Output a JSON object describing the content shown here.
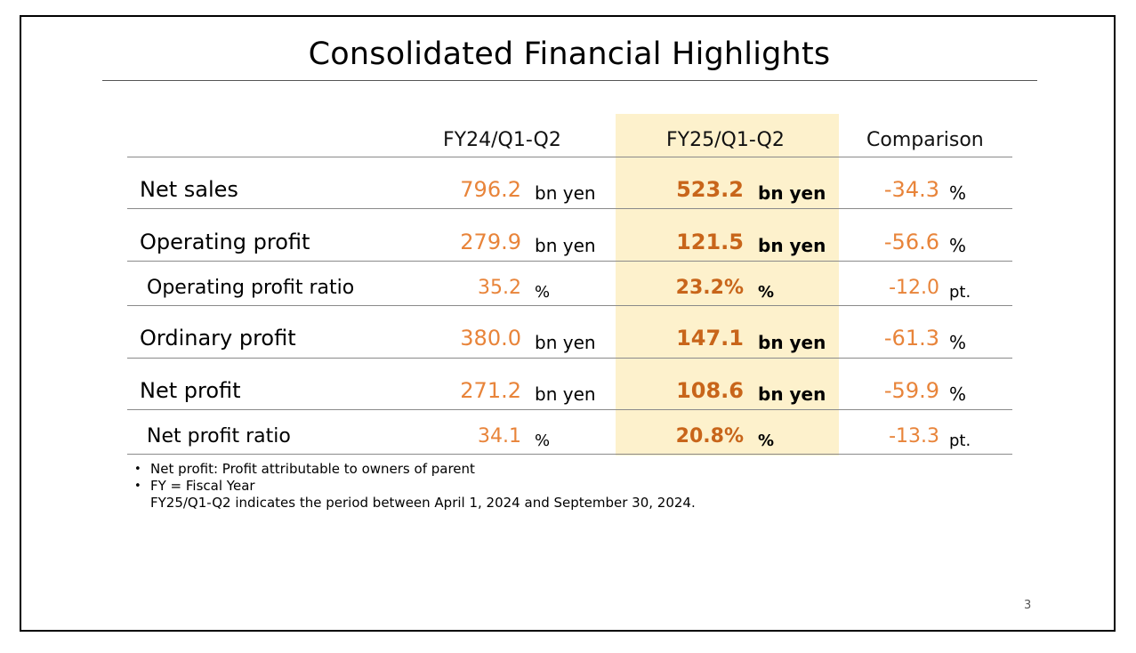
{
  "title": "Consolidated Financial Highlights",
  "columns": [
    "FY24/Q1-Q2",
    "FY25/Q1-Q2",
    "Comparison"
  ],
  "rows": [
    {
      "label": "Net sales",
      "fy24_value": "796.2",
      "fy24_unit": "bn yen",
      "fy25_value": "523.2",
      "fy25_unit": "bn yen",
      "comp_value": "-34.3",
      "comp_unit": "%"
    },
    {
      "label": "Operating profit",
      "fy24_value": "279.9",
      "fy24_unit": "bn yen",
      "fy25_value": "121.5",
      "fy25_unit": "bn yen",
      "comp_value": "-56.6",
      "comp_unit": "%"
    },
    {
      "label": "Operating profit ratio",
      "fy24_value": "35.2",
      "fy24_unit": "%",
      "fy25_value": "23.2%",
      "fy25_unit": "%",
      "comp_value": "-12.0",
      "comp_unit": "pt."
    },
    {
      "label": "Ordinary profit",
      "fy24_value": "380.0",
      "fy24_unit": "bn yen",
      "fy25_value": "147.1",
      "fy25_unit": "bn yen",
      "comp_value": "-61.3",
      "comp_unit": "%"
    },
    {
      "label": "Net profit",
      "fy24_value": "271.2",
      "fy24_unit": "bn yen",
      "fy25_value": "108.6",
      "fy25_unit": "bn yen",
      "comp_value": "-59.9",
      "comp_unit": "%"
    },
    {
      "label": "Net profit ratio",
      "fy24_value": "34.1",
      "fy24_unit": "%",
      "fy25_value": "20.8%",
      "fy25_unit": "%",
      "comp_value": "-13.3",
      "comp_unit": "pt."
    }
  ],
  "notes": {
    "bullet": "•",
    "line1": "Net profit: Profit attributable to owners of parent",
    "line2": "FY = Fiscal Year",
    "line3": "FY25/Q1-Q2 indicates the period between April 1, 2024 and September 30, 2024."
  },
  "page_number": "3",
  "colors": {
    "highlight_fill": "#fdf1cc",
    "value_orange": "#e8843a",
    "bold_value_orange": "#c8651a"
  }
}
